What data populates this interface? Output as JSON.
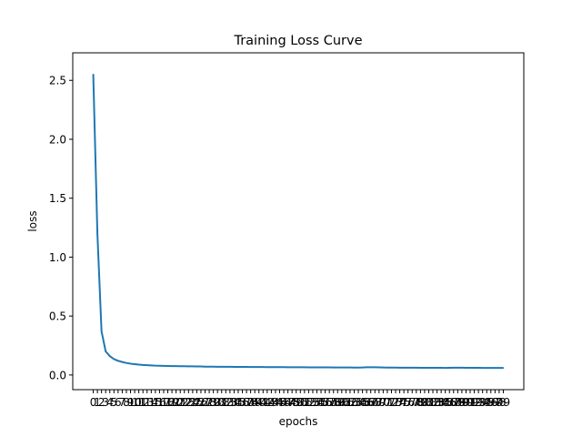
{
  "chart_data": {
    "type": "line",
    "title": "Training Loss Curve",
    "xlabel": "epochs",
    "ylabel": "loss",
    "xlim": [
      -4.95,
      103.95
    ],
    "ylim": [
      -0.1245,
      2.7336
    ],
    "yticks": [
      0.0,
      0.5,
      1.0,
      1.5,
      2.0,
      2.5
    ],
    "ytick_labels": [
      "0.0",
      "0.5",
      "1.0",
      "1.5",
      "2.0",
      "2.5"
    ],
    "categories": [
      "0",
      "1",
      "2",
      "3",
      "4",
      "5",
      "6",
      "7",
      "8",
      "9",
      "10",
      "11",
      "12",
      "13",
      "14",
      "15",
      "16",
      "17",
      "18",
      "19",
      "20",
      "21",
      "22",
      "23",
      "24",
      "25",
      "26",
      "27",
      "28",
      "29",
      "30",
      "31",
      "32",
      "33",
      "34",
      "35",
      "36",
      "37",
      "38",
      "39",
      "40",
      "41",
      "42",
      "43",
      "44",
      "45",
      "46",
      "47",
      "48",
      "49",
      "50",
      "51",
      "52",
      "53",
      "54",
      "55",
      "56",
      "57",
      "58",
      "59",
      "60",
      "61",
      "62",
      "63",
      "64",
      "65",
      "66",
      "67",
      "68",
      "69",
      "70",
      "71",
      "72",
      "73",
      "74",
      "75",
      "76",
      "77",
      "78",
      "79",
      "80",
      "81",
      "82",
      "83",
      "84",
      "85",
      "86",
      "87",
      "88",
      "89",
      "90",
      "91",
      "92",
      "93",
      "94",
      "95",
      "96",
      "97",
      "98",
      "99"
    ],
    "series": [
      {
        "color": "#1f77b4",
        "values": [
          2.55,
          1.2,
          0.37,
          0.2,
          0.16,
          0.135,
          0.12,
          0.11,
          0.102,
          0.096,
          0.092,
          0.088,
          0.085,
          0.083,
          0.081,
          0.079,
          0.078,
          0.077,
          0.076,
          0.075,
          0.075,
          0.074,
          0.074,
          0.073,
          0.073,
          0.072,
          0.072,
          0.071,
          0.071,
          0.071,
          0.07,
          0.07,
          0.07,
          0.07,
          0.069,
          0.069,
          0.069,
          0.069,
          0.068,
          0.068,
          0.068,
          0.068,
          0.067,
          0.067,
          0.067,
          0.067,
          0.067,
          0.066,
          0.066,
          0.066,
          0.066,
          0.066,
          0.065,
          0.065,
          0.065,
          0.065,
          0.065,
          0.065,
          0.064,
          0.064,
          0.064,
          0.064,
          0.064,
          0.063,
          0.063,
          0.064,
          0.066,
          0.066,
          0.066,
          0.065,
          0.064,
          0.063,
          0.063,
          0.063,
          0.062,
          0.062,
          0.062,
          0.062,
          0.062,
          0.061,
          0.061,
          0.061,
          0.061,
          0.061,
          0.061,
          0.06,
          0.061,
          0.062,
          0.062,
          0.062,
          0.061,
          0.061,
          0.061,
          0.061,
          0.06,
          0.06,
          0.06,
          0.06,
          0.06,
          0.06
        ]
      }
    ],
    "grid": false,
    "legend": "none"
  }
}
